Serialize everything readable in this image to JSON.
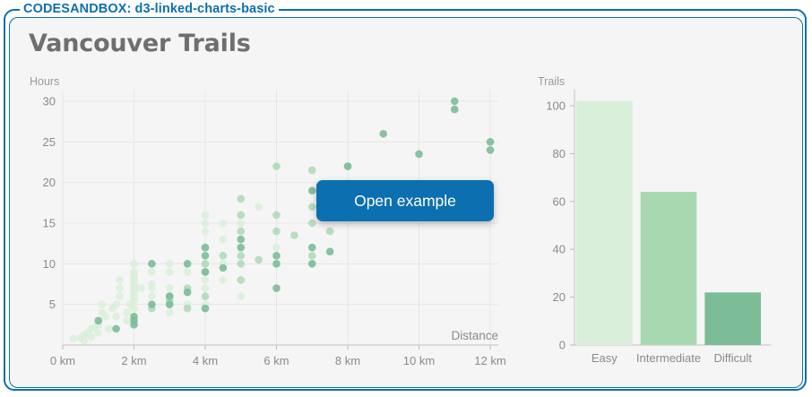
{
  "sandbox": {
    "label": "CODESANDBOX: d3-linked-charts-basic"
  },
  "page": {
    "title": "Vancouver Trails"
  },
  "overlay": {
    "open_label": "Open example"
  },
  "colors": {
    "accent": "#0c6fb0",
    "easy": "#d9efd9",
    "intermediate": "#a8d8b0",
    "difficult": "#7cbd98"
  },
  "chart_data": [
    {
      "type": "scatter",
      "ylabel": "Hours",
      "xlabel": "Distance",
      "xlim": [
        0,
        12
      ],
      "ylim": [
        0,
        30
      ],
      "x_ticks": [
        "0 km",
        "2 km",
        "4 km",
        "6 km",
        "8 km",
        "10 km",
        "12 km"
      ],
      "y_ticks": [
        "5",
        "10",
        "15",
        "20",
        "25",
        "30"
      ],
      "grid": true,
      "series": [
        {
          "difficulty": "Easy",
          "points": [
            [
              0.3,
              0.8
            ],
            [
              0.5,
              0.9
            ],
            [
              0.6,
              1.2
            ],
            [
              0.7,
              1.5
            ],
            [
              0.8,
              2
            ],
            [
              0.9,
              2.2
            ],
            [
              0.6,
              0.5
            ],
            [
              0.8,
              1
            ],
            [
              1,
              1.5
            ],
            [
              1,
              2.5
            ],
            [
              1,
              3
            ],
            [
              1.1,
              4
            ],
            [
              1.1,
              5
            ],
            [
              1.2,
              3.5
            ],
            [
              1.3,
              2
            ],
            [
              1.4,
              4.5
            ],
            [
              1.5,
              3.5
            ],
            [
              1.5,
              5
            ],
            [
              1.6,
              6
            ],
            [
              1.6,
              7
            ],
            [
              1.6,
              8
            ],
            [
              1.8,
              3
            ],
            [
              1.8,
              4
            ],
            [
              1.9,
              5
            ],
            [
              2,
              5.5
            ],
            [
              2,
              6
            ],
            [
              2,
              6.5
            ],
            [
              2,
              7
            ],
            [
              2,
              7.5
            ],
            [
              2,
              8
            ],
            [
              2,
              8.5
            ],
            [
              2,
              9
            ],
            [
              2,
              10
            ],
            [
              2,
              4.5
            ],
            [
              2.2,
              7
            ],
            [
              2.5,
              6
            ],
            [
              2.5,
              7
            ],
            [
              2.5,
              7.5
            ],
            [
              2.5,
              9
            ],
            [
              3,
              4
            ],
            [
              3,
              5
            ],
            [
              3,
              7
            ],
            [
              3,
              9
            ],
            [
              3,
              10
            ],
            [
              3.5,
              5
            ],
            [
              3.5,
              9
            ],
            [
              3.5,
              10
            ],
            [
              4,
              5
            ],
            [
              4,
              7
            ],
            [
              4,
              8
            ],
            [
              4,
              12
            ],
            [
              4,
              14
            ],
            [
              4,
              15
            ],
            [
              4,
              16
            ],
            [
              4.5,
              8
            ],
            [
              4.5,
              10
            ],
            [
              4.5,
              13
            ],
            [
              4.5,
              15
            ],
            [
              5,
              6
            ],
            [
              5,
              15
            ],
            [
              5.5,
              17
            ],
            [
              6,
              12
            ],
            [
              6,
              22
            ],
            [
              6,
              10
            ]
          ]
        },
        {
          "difficulty": "Intermediate",
          "points": [
            [
              2.5,
              4.5
            ],
            [
              3,
              5.5
            ],
            [
              3,
              6
            ],
            [
              3.5,
              4.5
            ],
            [
              3.5,
              7
            ],
            [
              4,
              6
            ],
            [
              4,
              9
            ],
            [
              4,
              10
            ],
            [
              4.5,
              11
            ],
            [
              5,
              8
            ],
            [
              5,
              10
            ],
            [
              5,
              11
            ],
            [
              5,
              14
            ],
            [
              5,
              16
            ],
            [
              5,
              18
            ],
            [
              5.5,
              10.5
            ],
            [
              6,
              14
            ],
            [
              6,
              16
            ],
            [
              6,
              22
            ],
            [
              6.5,
              13.5
            ],
            [
              7,
              11
            ],
            [
              7,
              15
            ],
            [
              7,
              17
            ],
            [
              7,
              21.5
            ],
            [
              7.5,
              14
            ],
            [
              7.5,
              19
            ],
            [
              8,
              19
            ],
            [
              8,
              22
            ]
          ]
        },
        {
          "difficulty": "Difficult",
          "points": [
            [
              1,
              3
            ],
            [
              1.5,
              2
            ],
            [
              2,
              3
            ],
            [
              2,
              3.5
            ],
            [
              2,
              2.5
            ],
            [
              2.5,
              5
            ],
            [
              2.5,
              10
            ],
            [
              3,
              5
            ],
            [
              3,
              6
            ],
            [
              3.5,
              6.5
            ],
            [
              3.5,
              10
            ],
            [
              4,
              4.5
            ],
            [
              4,
              9
            ],
            [
              4,
              11
            ],
            [
              4,
              12
            ],
            [
              4.5,
              9.5
            ],
            [
              5,
              12
            ],
            [
              5,
              13
            ],
            [
              6,
              7
            ],
            [
              6,
              10
            ],
            [
              6,
              11
            ],
            [
              7,
              10
            ],
            [
              7,
              12
            ],
            [
              7,
              19
            ],
            [
              7.5,
              11.5
            ],
            [
              8,
              22
            ],
            [
              9,
              26
            ],
            [
              10,
              23.5
            ],
            [
              11,
              29
            ],
            [
              11,
              30
            ],
            [
              12,
              24
            ],
            [
              12,
              25
            ]
          ]
        }
      ]
    },
    {
      "type": "bar",
      "ylabel": "Trails",
      "categories": [
        "Easy",
        "Intermediate",
        "Difficult"
      ],
      "values": [
        102,
        64,
        22
      ],
      "ylim": [
        0,
        110
      ],
      "y_ticks": [
        "0",
        "20",
        "40",
        "60",
        "80",
        "100"
      ]
    }
  ]
}
